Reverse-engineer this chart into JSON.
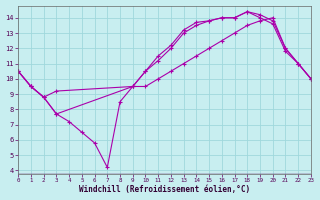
{
  "background_color": "#c8eef0",
  "grid_color": "#a0d8dc",
  "line_color": "#aa00aa",
  "xlim": [
    0,
    23
  ],
  "ylim": [
    3.8,
    14.8
  ],
  "yticks": [
    4,
    5,
    6,
    7,
    8,
    9,
    10,
    11,
    12,
    13,
    14
  ],
  "xticks": [
    0,
    1,
    2,
    3,
    4,
    5,
    6,
    7,
    8,
    9,
    10,
    11,
    12,
    13,
    14,
    15,
    16,
    17,
    18,
    19,
    20,
    21,
    22,
    23
  ],
  "xlabel": "Windchill (Refroidissement éolien,°C)",
  "series": [
    {
      "x": [
        0,
        1,
        2,
        3,
        9,
        10,
        11,
        12,
        13,
        14,
        15,
        16,
        17,
        18,
        19,
        20,
        21,
        22,
        23
      ],
      "y": [
        10.5,
        9.5,
        8.8,
        9.2,
        9.5,
        10.5,
        11.5,
        12.2,
        13.2,
        13.7,
        13.8,
        14.0,
        14.0,
        14.4,
        14.2,
        13.8,
        12.0,
        11.0,
        10.0
      ]
    },
    {
      "x": [
        0,
        1,
        2,
        3,
        9,
        10,
        11,
        12,
        13,
        14,
        15,
        16,
        17,
        18,
        19,
        20,
        21,
        22,
        23
      ],
      "y": [
        10.5,
        9.5,
        8.8,
        7.7,
        9.5,
        10.5,
        11.2,
        12.0,
        13.0,
        13.5,
        13.8,
        14.0,
        14.0,
        14.4,
        14.0,
        13.6,
        11.8,
        11.0,
        10.0
      ]
    },
    {
      "x": [
        0,
        1,
        2,
        3,
        4,
        5,
        6,
        7,
        8,
        9,
        10,
        11,
        12,
        13,
        14,
        15,
        16,
        17,
        18,
        19,
        20,
        21,
        22,
        23
      ],
      "y": [
        10.5,
        9.5,
        8.8,
        7.7,
        7.2,
        6.5,
        5.8,
        4.2,
        8.5,
        9.5,
        9.5,
        10.0,
        10.5,
        11.0,
        11.5,
        12.0,
        12.5,
        13.0,
        13.5,
        13.8,
        14.0,
        12.0,
        11.0,
        10.0
      ]
    }
  ]
}
